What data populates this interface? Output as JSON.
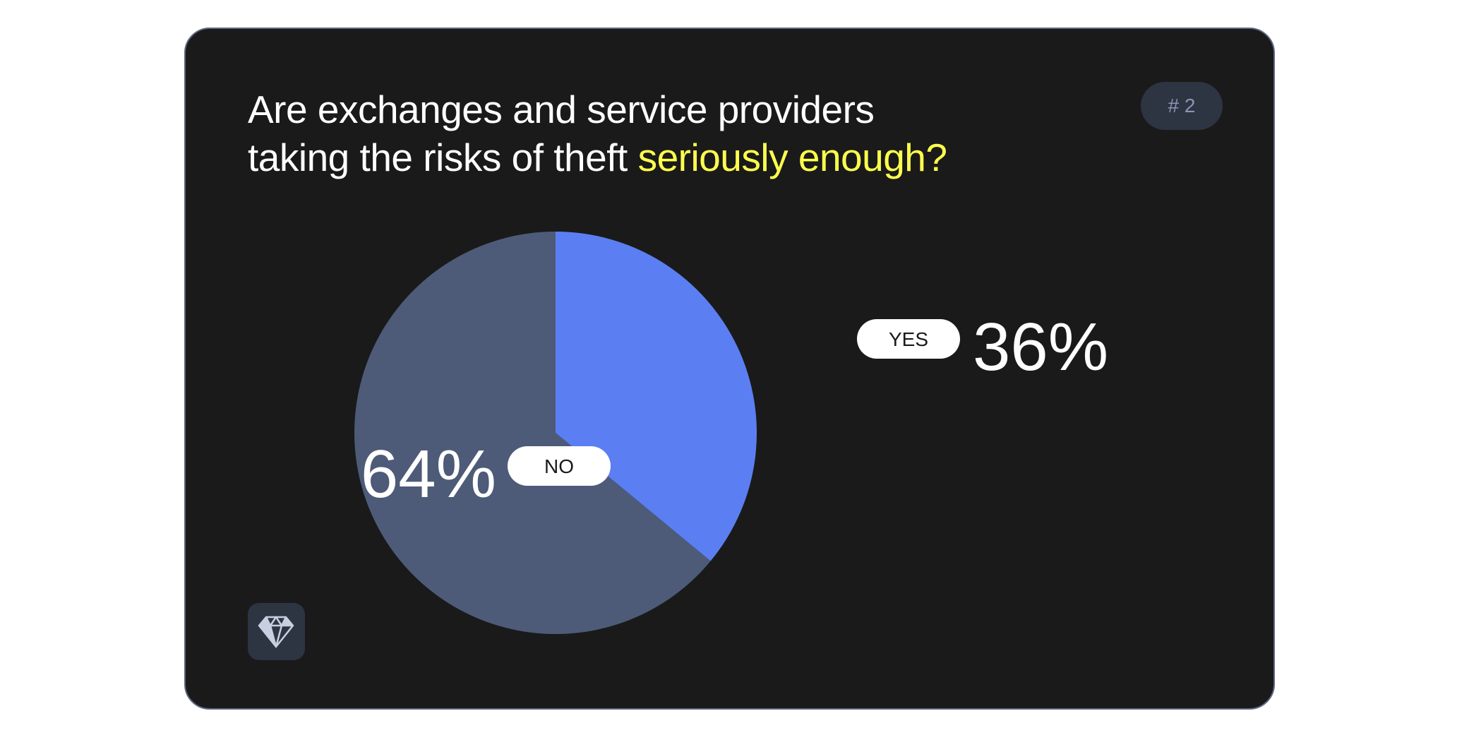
{
  "question": {
    "line1": "Are exchanges and service providers",
    "line2_plain": "taking the risks of theft ",
    "line2_highlight": "seriously enough?",
    "highlight_color": "#ffff4d"
  },
  "badge": {
    "label": "# 2"
  },
  "logo": {
    "icon": "diamond-icon"
  },
  "chart_data": {
    "type": "pie",
    "slices": [
      {
        "label": "YES",
        "value": 36,
        "display": "36%",
        "color": "#5b7ff2"
      },
      {
        "label": "NO",
        "value": 64,
        "display": "64%",
        "color": "#4d5b78"
      }
    ],
    "start_angle_deg": 0,
    "direction": "clockwise"
  }
}
